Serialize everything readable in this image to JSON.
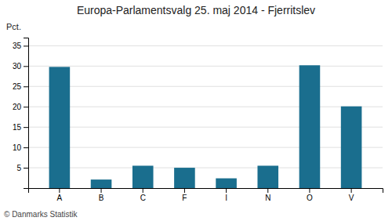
{
  "chart_data": {
    "type": "bar",
    "title": "Europa-Parlamentsvalg 25. maj 2014 - Fjerritslev",
    "ylabel": "Pct.",
    "annotations": [
      "© Danmarks Statistik"
    ],
    "categories": [
      "A",
      "B",
      "C",
      "F",
      "I",
      "N",
      "O",
      "V"
    ],
    "values": [
      29.8,
      2.1,
      5.5,
      5.0,
      2.4,
      5.5,
      30.2,
      20.1
    ],
    "color": "#1a6e8e",
    "ylim": [
      0,
      37
    ],
    "yticks": [
      5,
      10,
      15,
      20,
      25,
      30,
      35
    ],
    "grid": true
  }
}
